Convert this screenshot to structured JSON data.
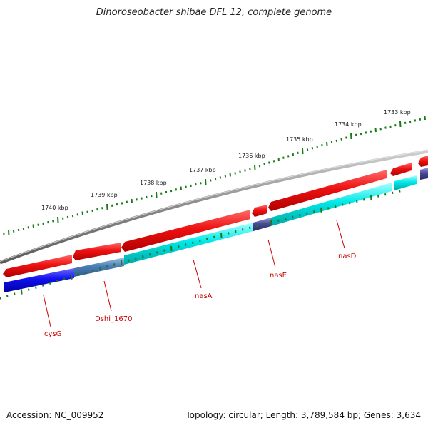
{
  "title": "Dinoroseobacter shibae DFL 12, complete genome",
  "footer": {
    "accession": "Accession: NC_009952",
    "summary": "Topology: circular; Length: 3,789,584 bp; Genes: 3,634"
  },
  "kbp_labels": [
    {
      "label": "1733 kbp",
      "kb": 1733
    },
    {
      "label": "1734 kbp",
      "kb": 1734
    },
    {
      "label": "1735 kbp",
      "kb": 1735
    },
    {
      "label": "1736 kbp",
      "kb": 1736
    },
    {
      "label": "1737 kbp",
      "kb": 1737
    },
    {
      "label": "1738 kbp",
      "kb": 1738
    },
    {
      "label": "1739 kbp",
      "kb": 1739
    },
    {
      "label": "1740 kbp",
      "kb": 1740
    }
  ],
  "genes": [
    {
      "name": "cysG",
      "strand": "reverse",
      "color": "#0000ee"
    },
    {
      "name": "Dshi_1670",
      "strand": "reverse",
      "color": "#4b7fb8"
    },
    {
      "name": "nasA",
      "strand": "reverse",
      "color": "#00e5e5"
    },
    {
      "name": "nasE",
      "strand": "reverse",
      "color": "#4a4a99"
    },
    {
      "name": "nasD",
      "strand": "reverse",
      "color": "#00e5e5"
    }
  ],
  "colors": {
    "cds_forward": "#ee1111",
    "backbone": "#888888",
    "tick": "#1a7a1a",
    "label": "#cc0000"
  }
}
